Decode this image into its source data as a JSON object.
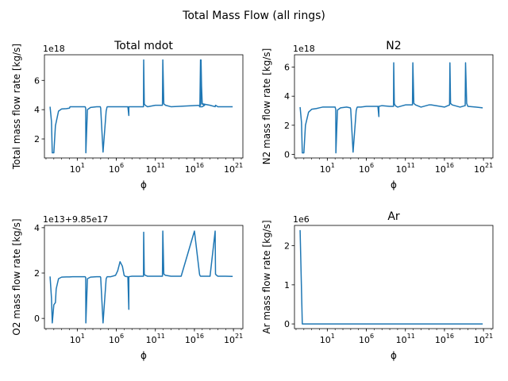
{
  "figure": {
    "title": "Total Mass Flow (all rings)"
  },
  "colors": {
    "series": "#1f77b4",
    "axes": "#000000",
    "background": "#ffffff"
  },
  "chart_data": [
    {
      "type": "line",
      "title": "Total mdot",
      "xlabel": "ϕ",
      "ylabel": "Total mass flow rate [kg/s]",
      "x_scale": "log",
      "xlim": [
        0.00063,
        1.6e+22
      ],
      "x_ticks": [
        10,
        1000000.0,
        100000000000.0,
        1e+16,
        1e+21
      ],
      "x_tick_labels": [
        {
          "base": "10",
          "exp": "1"
        },
        {
          "base": "10",
          "exp": "6"
        },
        {
          "base": "10",
          "exp": "11"
        },
        {
          "base": "10",
          "exp": "16"
        },
        {
          "base": "10",
          "exp": "21"
        }
      ],
      "y_offset_text": "1e18",
      "ylim": [
        0.7,
        7.75
      ],
      "y_ticks": [
        2,
        4,
        6
      ],
      "y_tick_labels": [
        "2",
        "4",
        "6"
      ],
      "grid": false,
      "series": [
        {
          "x": [
            0.0033,
            0.005,
            0.0063,
            0.01,
            0.016,
            0.04,
            0.1,
            0.4,
            1,
            1.2,
            2.5,
            3.1,
            10,
            50,
            100,
            120,
            126,
            200,
            500,
            3000,
            4000,
            7000,
            8900,
            10000,
            20000,
            50000,
            60000,
            62000,
            70000,
            200000,
            1000000,
            10000000,
            20000000,
            30000000,
            40000000,
            40000000,
            100000000,
            500000000,
            1000000000,
            2000000000,
            3000000000,
            3200000000,
            3800000000,
            5000000000,
            10000000000,
            100000000000,
            800000000000,
            900000000000,
            1200000000000,
            2000000000000,
            10000000000000,
            60000000000000000,
            70000000000000000,
            90000000000000000,
            200000000000000000,
            1e+17,
            4.5e+16,
            5e+16,
            6e+16,
            1e+17,
            1e+18,
            4.5e+18,
            5e+18,
            7e+18,
            1e+19,
            1e+20,
            7.9e+20
          ],
          "y": [
            4.2,
            3.2,
            1.05,
            1.05,
            2.9,
            3.9,
            4.05,
            4.07,
            4.1,
            4.2,
            4.2,
            4.2,
            4.2,
            4.2,
            4.2,
            4.1,
            1.05,
            4.0,
            4.15,
            4.2,
            4.2,
            4.2,
            4.2,
            4.1,
            1.1,
            3.9,
            4.1,
            4.15,
            4.2,
            4.2,
            4.2,
            4.2,
            4.2,
            4.2,
            3.6,
            4.2,
            4.2,
            4.2,
            4.2,
            4.2,
            4.2,
            7.4,
            4.4,
            4.3,
            4.2,
            4.3,
            4.3,
            7.4,
            4.4,
            4.3,
            4.2,
            4.3,
            7.4,
            4.4,
            4.3,
            4.2,
            4.2,
            4.3,
            7.4,
            4.4,
            4.3,
            4.2,
            4.3,
            4.25,
            4.2,
            4.2,
            4.2
          ],
          "name": ""
        }
      ]
    },
    {
      "type": "line",
      "title": "N2",
      "xlabel": "ϕ",
      "ylabel": "N2 mass flow rate [kg/s]",
      "x_scale": "log",
      "xlim": [
        0.00063,
        1.6e+22
      ],
      "x_ticks": [
        10,
        1000000.0,
        100000000000.0,
        1e+16,
        1e+21
      ],
      "x_tick_labels": [
        {
          "base": "10",
          "exp": "1"
        },
        {
          "base": "10",
          "exp": "6"
        },
        {
          "base": "10",
          "exp": "11"
        },
        {
          "base": "10",
          "exp": "16"
        },
        {
          "base": "10",
          "exp": "21"
        }
      ],
      "y_offset_text": "1e18",
      "ylim": [
        -0.25,
        6.85
      ],
      "y_ticks": [
        0,
        2,
        4,
        6
      ],
      "y_tick_labels": [
        "0",
        "2",
        "4",
        "6"
      ],
      "grid": false,
      "series": [
        {
          "x": [
            0.0033,
            0.005,
            0.0063,
            0.01,
            0.016,
            0.04,
            0.1,
            0.4,
            1,
            2.5,
            10,
            100,
            120,
            126,
            200,
            500,
            3000,
            8900,
            10000,
            20000,
            50000,
            62000,
            70000,
            200000,
            1000000,
            10000000,
            30000000,
            40000000,
            40000000,
            100000000,
            1000000000,
            3000000000,
            3200000000,
            3800000000,
            5000000000,
            10000000000,
            100000000000,
            800000000000,
            900000000000,
            1200000000000,
            2000000000000,
            10000000000000,
            100000000000000,
            200000000000000,
            1e+16,
            4.5e+16,
            5e+16,
            6e+16,
            1e+17,
            1e+18,
            4.5e+18,
            5e+18,
            7e+18,
            1e+19,
            1e+20,
            7.9e+20
          ],
          "y": [
            3.25,
            2.2,
            0.1,
            0.1,
            2.0,
            2.9,
            3.1,
            3.15,
            3.2,
            3.25,
            3.25,
            3.25,
            3.1,
            0.1,
            3.05,
            3.2,
            3.25,
            3.2,
            3.1,
            0.15,
            3.0,
            3.2,
            3.25,
            3.25,
            3.3,
            3.3,
            3.3,
            2.6,
            3.3,
            3.35,
            3.3,
            3.3,
            6.3,
            3.5,
            3.35,
            3.25,
            3.4,
            3.4,
            6.3,
            3.5,
            3.4,
            3.25,
            3.4,
            3.4,
            3.25,
            3.4,
            6.3,
            3.5,
            3.4,
            3.25,
            3.35,
            6.3,
            3.5,
            3.3,
            3.25,
            3.2
          ],
          "name": ""
        }
      ]
    },
    {
      "type": "line",
      "title": "",
      "xlabel": "ϕ",
      "ylabel": "O2 mass flow rate [kg/s]",
      "x_scale": "log",
      "xlim": [
        0.00063,
        1.6e+22
      ],
      "x_ticks": [
        10,
        1000000.0,
        100000000000.0,
        1e+16,
        1e+21
      ],
      "x_tick_labels": [
        {
          "base": "10",
          "exp": "1"
        },
        {
          "base": "10",
          "exp": "6"
        },
        {
          "base": "10",
          "exp": "11"
        },
        {
          "base": "10",
          "exp": "16"
        },
        {
          "base": "10",
          "exp": "21"
        }
      ],
      "y_offset_text": "1e13+9.85e17",
      "ylim": [
        -0.45,
        4.1
      ],
      "y_ticks": [
        0,
        2,
        4
      ],
      "y_tick_labels": [
        "0",
        "2",
        "4"
      ],
      "grid": false,
      "series": [
        {
          "x": [
            0.0033,
            0.005,
            0.0063,
            0.01,
            0.016,
            0.02,
            0.04,
            0.1,
            0.4,
            1,
            2.5,
            10,
            100,
            120,
            126,
            200,
            500,
            3000,
            8900,
            10000,
            20000,
            50000,
            62000,
            70000,
            200000,
            800000,
            1500000,
            3000000,
            6000000,
            10000000,
            15000000,
            30000000,
            40000000,
            40000000,
            100000000,
            1000000000,
            3000000000,
            3200000000,
            3800000000,
            5000000000,
            10000000000,
            100000000000,
            800000000000,
            900000000000,
            1200000000000,
            2000000000000,
            10000000000000,
            100000000000000,
            200000000000000,
            1e+16,
            4.5e+16,
            5e+16,
            6e+16,
            1e+17,
            1e+18,
            4.5e+18,
            5e+18,
            7e+18,
            1e+19,
            1e+20,
            7.9e+20
          ],
          "y": [
            1.85,
            0.9,
            -0.2,
            0.6,
            0.7,
            1.3,
            1.75,
            1.82,
            1.83,
            1.83,
            1.84,
            1.84,
            1.84,
            1.8,
            -0.2,
            1.75,
            1.82,
            1.84,
            1.84,
            1.8,
            -0.2,
            1.75,
            1.82,
            1.84,
            1.84,
            1.9,
            2.1,
            2.5,
            2.3,
            1.9,
            1.85,
            1.84,
            0.4,
            1.84,
            1.86,
            1.86,
            1.86,
            3.8,
            1.95,
            1.9,
            1.86,
            1.86,
            1.86,
            3.85,
            1.95,
            1.9,
            1.86,
            1.86,
            1.86,
            3.85,
            1.95,
            1.9,
            1.86,
            1.86,
            1.86,
            3.85,
            1.95,
            1.9,
            1.86,
            1.86,
            1.85
          ],
          "name": ""
        }
      ]
    },
    {
      "type": "line",
      "title": "Ar",
      "xlabel": "ϕ",
      "ylabel": "Ar mass flow rate [kg/s]",
      "x_scale": "log",
      "xlim": [
        0.00063,
        1.6e+22
      ],
      "x_ticks": [
        10,
        1000000.0,
        100000000000.0,
        1e+16,
        1e+21
      ],
      "x_tick_labels": [
        {
          "base": "10",
          "exp": "1"
        },
        {
          "base": "10",
          "exp": "6"
        },
        {
          "base": "10",
          "exp": "11"
        },
        {
          "base": "10",
          "exp": "16"
        },
        {
          "base": "10",
          "exp": "21"
        }
      ],
      "y_offset_text": "1e6",
      "ylim": [
        -0.12,
        2.52
      ],
      "y_ticks": [
        0,
        1,
        2
      ],
      "y_tick_labels": [
        "0",
        "1",
        "2"
      ],
      "grid": false,
      "series": [
        {
          "x": [
            0.0033,
            0.0063,
            0.01,
            1,
            1000000.0,
            100000000000.0,
            1e+16,
            7.9e+20
          ],
          "y": [
            2.4,
            0.0,
            0.0,
            0.0,
            0.0,
            0.0,
            0.0,
            0.0
          ],
          "name": ""
        }
      ]
    }
  ]
}
